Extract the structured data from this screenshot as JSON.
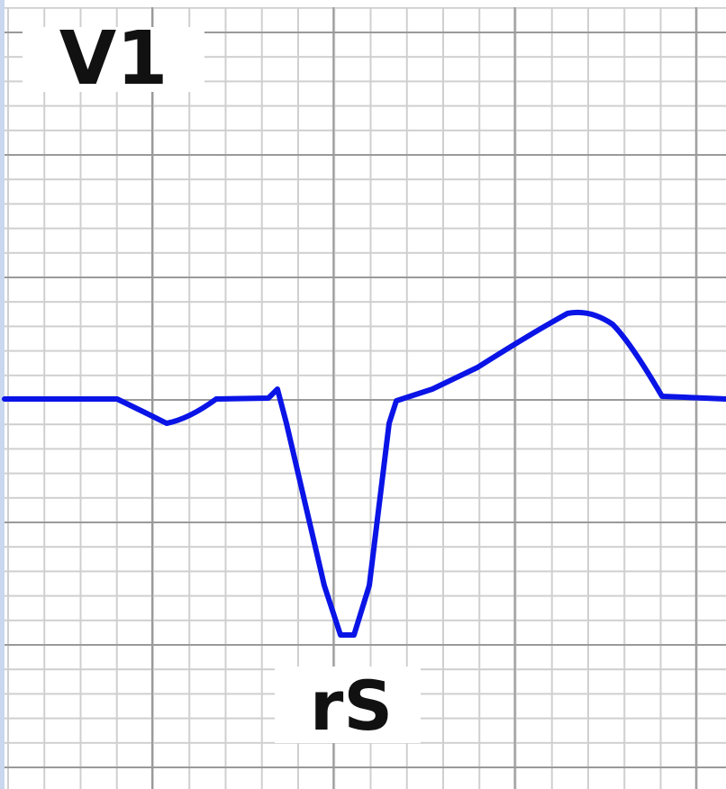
{
  "lead": {
    "name": "V1",
    "complex": "rS"
  }
}
